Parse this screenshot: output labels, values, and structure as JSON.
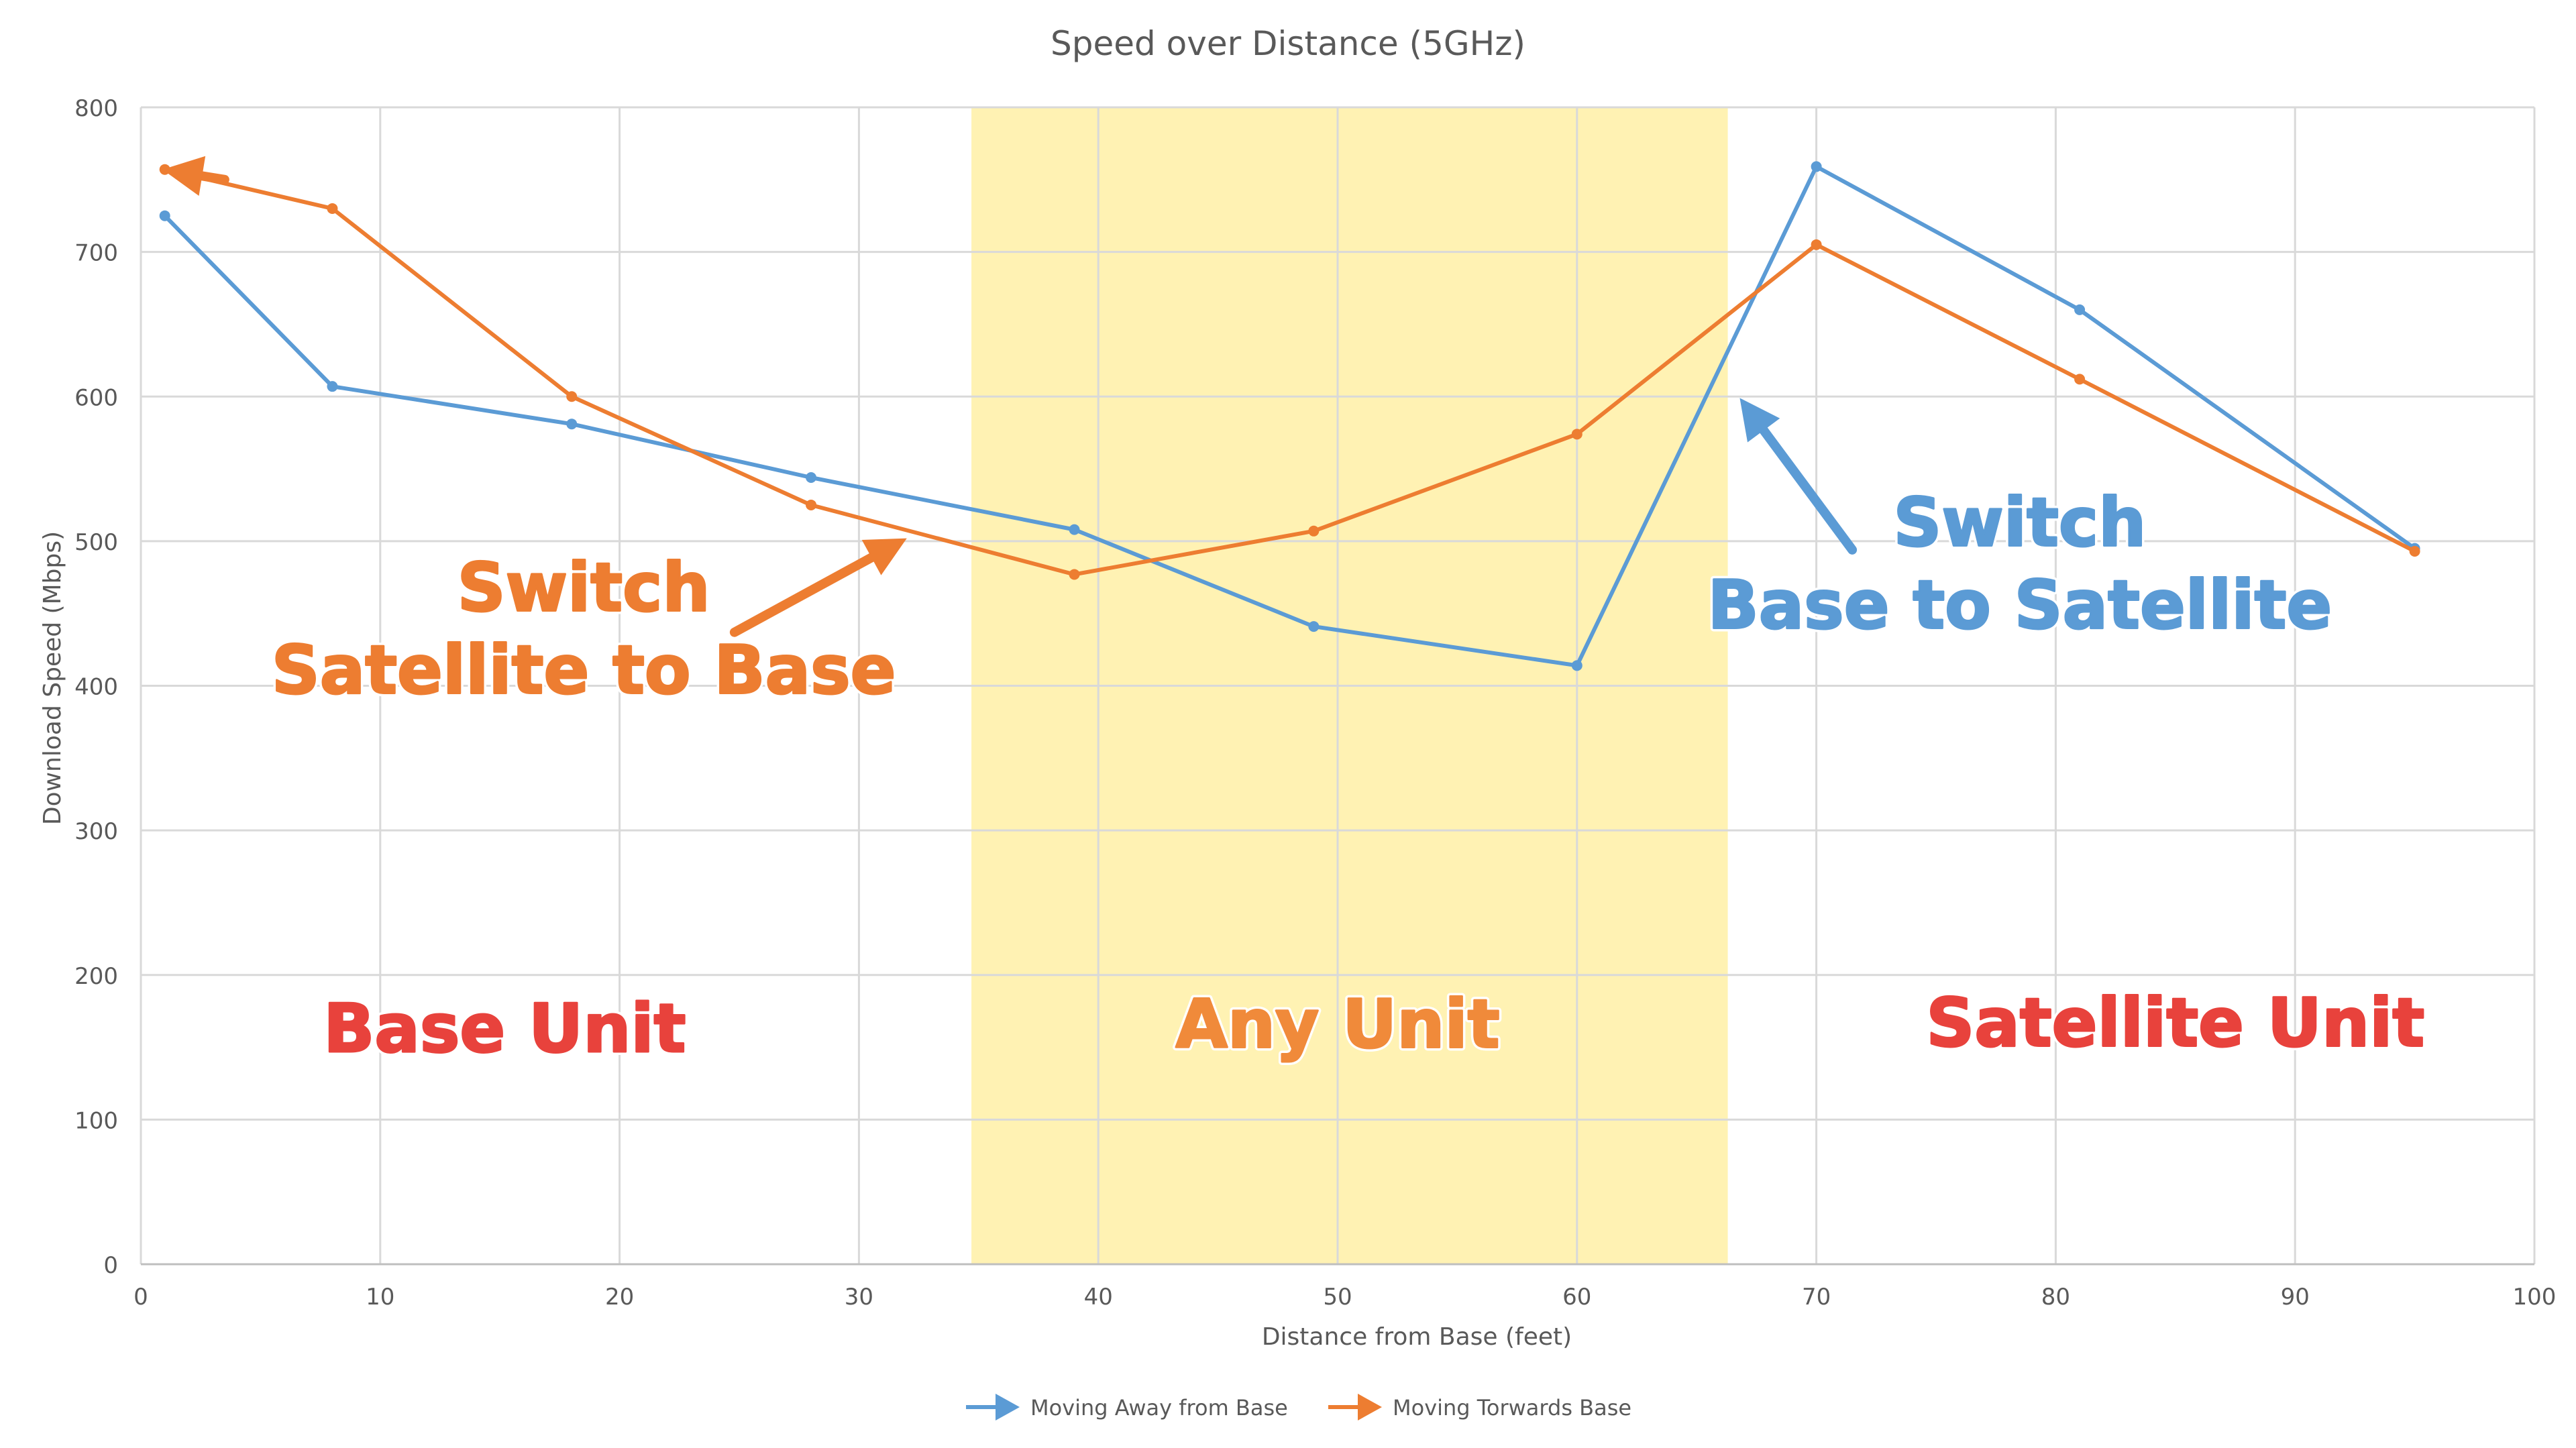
{
  "chart_data": {
    "type": "line",
    "title": "Speed over Distance (5GHz)",
    "xlabel": "Distance from Base (feet)",
    "ylabel": "Download Speed (Mbps)",
    "xlim": [
      0,
      100
    ],
    "ylim": [
      0,
      800
    ],
    "xticks": [
      0,
      10,
      20,
      30,
      40,
      50,
      60,
      70,
      80,
      90,
      100
    ],
    "yticks": [
      0,
      100,
      200,
      300,
      400,
      500,
      600,
      700,
      800
    ],
    "grid": true,
    "legend_position": "bottom",
    "series": [
      {
        "name": "Moving Away from Base",
        "color": "#5B9BD5",
        "x": [
          1,
          8,
          18,
          28,
          39,
          49,
          60,
          70,
          81,
          95
        ],
        "y": [
          725,
          607,
          581,
          544,
          508,
          441,
          414,
          759,
          660,
          495
        ]
      },
      {
        "name": "Moving Torwards Base",
        "color": "#ED7D31",
        "x": [
          1,
          8,
          18,
          28,
          39,
          49,
          60,
          70,
          81,
          95
        ],
        "y": [
          757,
          730,
          600,
          525,
          477,
          507,
          574,
          705,
          612,
          493
        ]
      }
    ],
    "shaded_region": {
      "x_start": 34.7,
      "x_end": 66.3,
      "color": "#FFF2B3"
    },
    "annotations": [
      {
        "id": "switch-sat-to-base-1",
        "text": "Switch",
        "x": 18.5,
        "y": 452,
        "color": "#ED7D31"
      },
      {
        "id": "switch-sat-to-base-2",
        "text": "Satellite to Base",
        "x": 18.5,
        "y": 395,
        "color": "#ED7D31"
      },
      {
        "id": "switch-base-to-sat-1",
        "text": "Switch",
        "x": 78.5,
        "y": 497,
        "color": "#5B9BD5"
      },
      {
        "id": "switch-base-to-sat-2",
        "text": "Base to Satellite",
        "x": 78.5,
        "y": 440,
        "color": "#5B9BD5"
      },
      {
        "id": "base-unit",
        "text": "Base Unit",
        "x": 15.2,
        "y": 147,
        "color": "#E8423C"
      },
      {
        "id": "any-unit",
        "text": "Any Unit",
        "x": 50,
        "y": 150,
        "color": "#F08A3A"
      },
      {
        "id": "satellite-unit",
        "text": "Satellite Unit",
        "x": 85,
        "y": 151,
        "color": "#E8423C"
      }
    ],
    "annotation_arrows": [
      {
        "color": "#ED7D31",
        "from": [
          24.8,
          437
        ],
        "to": [
          32.0,
          502
        ]
      },
      {
        "color": "#5B9BD5",
        "from": [
          71.5,
          494
        ],
        "to": [
          66.8,
          599
        ]
      },
      {
        "color": "#ED7D31",
        "from": [
          3.5,
          750
        ],
        "to": [
          0.9,
          757
        ]
      }
    ]
  }
}
